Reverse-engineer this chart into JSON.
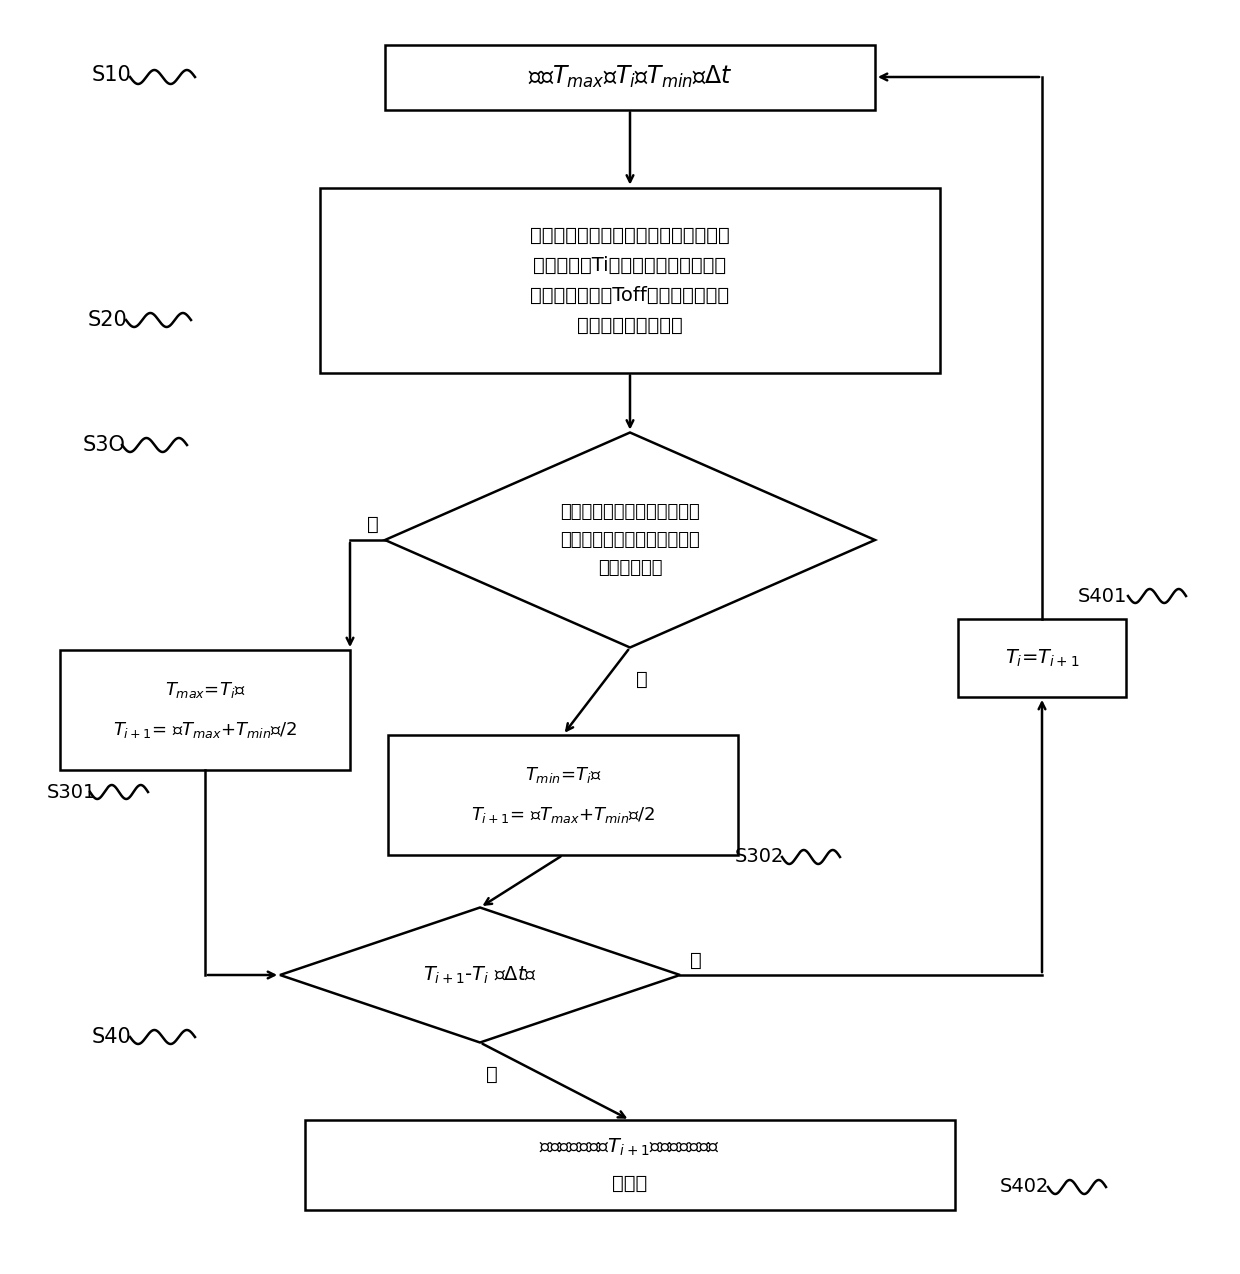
{
  "bg_color": "#ffffff",
  "box_edge": "#000000",
  "box_fill": "#ffffff",
  "lw": 1.8,
  "s10": "S10",
  "s20": "S20",
  "s30": "S3O",
  "s301": "S301",
  "s302": "S302",
  "s40": "S40",
  "s401": "S401",
  "s402": "S402",
  "box1_text": "设置T_max、 T_i、 T_min、 Δt",
  "b2l1": "获取交流电流上升沿的过零点信号后，",
  "b2l2": "控制器延时Ti时间发出继电器释放信",
  "b2l3": "号，继电器经过Toff时间完成释放动",
  "b2l4": "作，继电器触点释放",
  "d1l1": "继电器触点释放的时间点是否",
  "d1l2": "位于后续某个上升沿过零点的",
  "d1l3": "时间点之前？",
  "b3l1": "T_max=T_i，",
  "b3l2": "T_i+1= （T_max+T_min）/2",
  "b4l1": "T_min=T_i，",
  "b4l2": "T_i+1= （T_max+T_min）/2",
  "b5": "T_i=T_i+1",
  "d2": "T_i+1-T_i <Δt？",
  "b6l1": "确定延时时间为T_i+1，结束延时时间",
  "b6l2": "的获取",
  "yes": "是",
  "no": "否"
}
